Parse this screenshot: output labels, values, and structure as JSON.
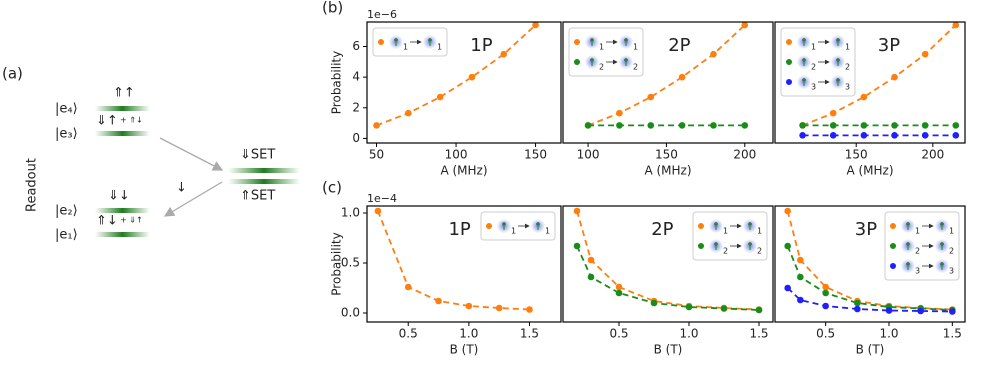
{
  "panel_labels": [
    "(a)",
    "(b)",
    "(c)"
  ],
  "diagram": {
    "side_label": "Readout",
    "levels": [
      {
        "label": "|e₄⟩",
        "state": "⇑↑"
      },
      {
        "label": "|e₃⟩",
        "state": "⇓↑",
        "extra": "+ ⇑↓"
      },
      {
        "label": "|e₂⟩",
        "state": "⇓↓"
      },
      {
        "label": "|e₁⟩",
        "state": "⇑↓",
        "extra": "+ ⇓↑"
      }
    ],
    "set_levels": [
      "⇓SET",
      "⇑SET"
    ],
    "transition_label": "↓"
  },
  "chart_data": [
    {
      "type": "line",
      "annotation": "1P",
      "xlabel": "A (MHz)",
      "ylabel": "Probability",
      "offset_label": "1e−6",
      "linestyle": "dashed",
      "legend": "upper left",
      "x": [
        50,
        70,
        90,
        110,
        130,
        150
      ],
      "xlim": [
        44,
        166
      ],
      "xticks": [
        50,
        100,
        150
      ],
      "ylim": [
        -0.3,
        7.6
      ],
      "yticks": [
        0,
        2,
        4,
        6
      ],
      "series": [
        {
          "name": "1",
          "color": "#ff7f0e",
          "values": [
            0.85,
            1.65,
            2.7,
            4.0,
            5.5,
            7.4
          ]
        }
      ]
    },
    {
      "type": "line",
      "annotation": "2P",
      "xlabel": "A (MHz)",
      "linestyle": "dashed",
      "legend": "upper left",
      "x": [
        100,
        120,
        140,
        160,
        180,
        200
      ],
      "xlim": [
        84,
        218
      ],
      "xticks": [
        100,
        150,
        200
      ],
      "ylim": [
        -0.3,
        7.6
      ],
      "series": [
        {
          "name": "1",
          "color": "#ff7f0e",
          "values": [
            0.85,
            1.65,
            2.7,
            4.0,
            5.5,
            7.4
          ]
        },
        {
          "name": "2",
          "color": "#1a8c1a",
          "values": [
            0.85,
            0.85,
            0.85,
            0.85,
            0.85,
            0.85
          ]
        }
      ]
    },
    {
      "type": "line",
      "annotation": "3P",
      "xlabel": "A (MHz)",
      "linestyle": "dashed",
      "legend": "upper left",
      "x": [
        115,
        135,
        155,
        175,
        195,
        215
      ],
      "xlim": [
        97,
        221
      ],
      "xticks": [
        150,
        200
      ],
      "ylim": [
        -0.3,
        7.6
      ],
      "series": [
        {
          "name": "1",
          "color": "#ff7f0e",
          "values": [
            0.85,
            1.65,
            2.7,
            4.0,
            5.5,
            7.4
          ]
        },
        {
          "name": "2",
          "color": "#1a8c1a",
          "values": [
            0.85,
            0.85,
            0.85,
            0.85,
            0.85,
            0.85
          ]
        },
        {
          "name": "3",
          "color": "#1f1fff",
          "values": [
            0.2,
            0.2,
            0.2,
            0.2,
            0.2,
            0.2
          ]
        }
      ]
    },
    {
      "type": "line",
      "annotation": "1P",
      "xlabel": "B (T)",
      "ylabel": "Probability",
      "offset_label": "1e−4",
      "linestyle": "dashed",
      "legend": "upper right",
      "x": [
        0.25,
        0.5,
        0.75,
        1.0,
        1.25,
        1.5
      ],
      "xlim": [
        0.16,
        1.76
      ],
      "xticks": [
        {
          "value": 0.5,
          "label": "0.5"
        },
        {
          "value": 1,
          "label": "1.0"
        },
        {
          "value": 1.5,
          "label": "1.5"
        }
      ],
      "ylim": [
        -0.09,
        1.07
      ],
      "yticks": [
        {
          "value": 0,
          "label": "0.0"
        },
        {
          "value": 0.5,
          "label": "0.5"
        },
        {
          "value": 1,
          "label": "1.0"
        }
      ],
      "series": [
        {
          "name": "1",
          "color": "#ff7f0e",
          "values": [
            1.02,
            0.26,
            0.12,
            0.07,
            0.05,
            0.035
          ]
        }
      ]
    },
    {
      "type": "line",
      "annotation": "2P",
      "xlabel": "B (T)",
      "linestyle": "dashed",
      "legend": "upper right",
      "x": [
        0.2,
        0.3,
        0.5,
        0.75,
        1.0,
        1.25,
        1.5
      ],
      "xlim": [
        0.1,
        1.6
      ],
      "xticks": [
        {
          "value": 0.5,
          "label": "0.5"
        },
        {
          "value": 1,
          "label": "1.0"
        },
        {
          "value": 1.5,
          "label": "1.5"
        }
      ],
      "ylim": [
        -0.09,
        1.07
      ],
      "series": [
        {
          "name": "1",
          "color": "#ff7f0e",
          "values": [
            1.02,
            0.53,
            0.26,
            0.12,
            0.07,
            0.05,
            0.035
          ]
        },
        {
          "name": "2",
          "color": "#1a8c1a",
          "values": [
            0.67,
            0.36,
            0.2,
            0.1,
            0.06,
            0.045,
            0.03
          ]
        }
      ]
    },
    {
      "type": "line",
      "annotation": "3P",
      "xlabel": "B (T)",
      "linestyle": "dashed",
      "legend": "upper right",
      "x": [
        0.2,
        0.3,
        0.5,
        0.75,
        1.0,
        1.25,
        1.5
      ],
      "xlim": [
        0.1,
        1.6
      ],
      "xticks": [
        {
          "value": 0.5,
          "label": "0.5"
        },
        {
          "value": 1,
          "label": "1.0"
        },
        {
          "value": 1.5,
          "label": "1.5"
        }
      ],
      "ylim": [
        -0.09,
        1.07
      ],
      "series": [
        {
          "name": "1",
          "color": "#ff7f0e",
          "values": [
            1.02,
            0.53,
            0.26,
            0.12,
            0.07,
            0.05,
            0.035
          ]
        },
        {
          "name": "2",
          "color": "#1a8c1a",
          "values": [
            0.67,
            0.36,
            0.2,
            0.1,
            0.06,
            0.045,
            0.03
          ]
        },
        {
          "name": "3",
          "color": "#1f1fff",
          "values": [
            0.25,
            0.13,
            0.07,
            0.04,
            0.025,
            0.02,
            0.015
          ]
        }
      ]
    }
  ]
}
